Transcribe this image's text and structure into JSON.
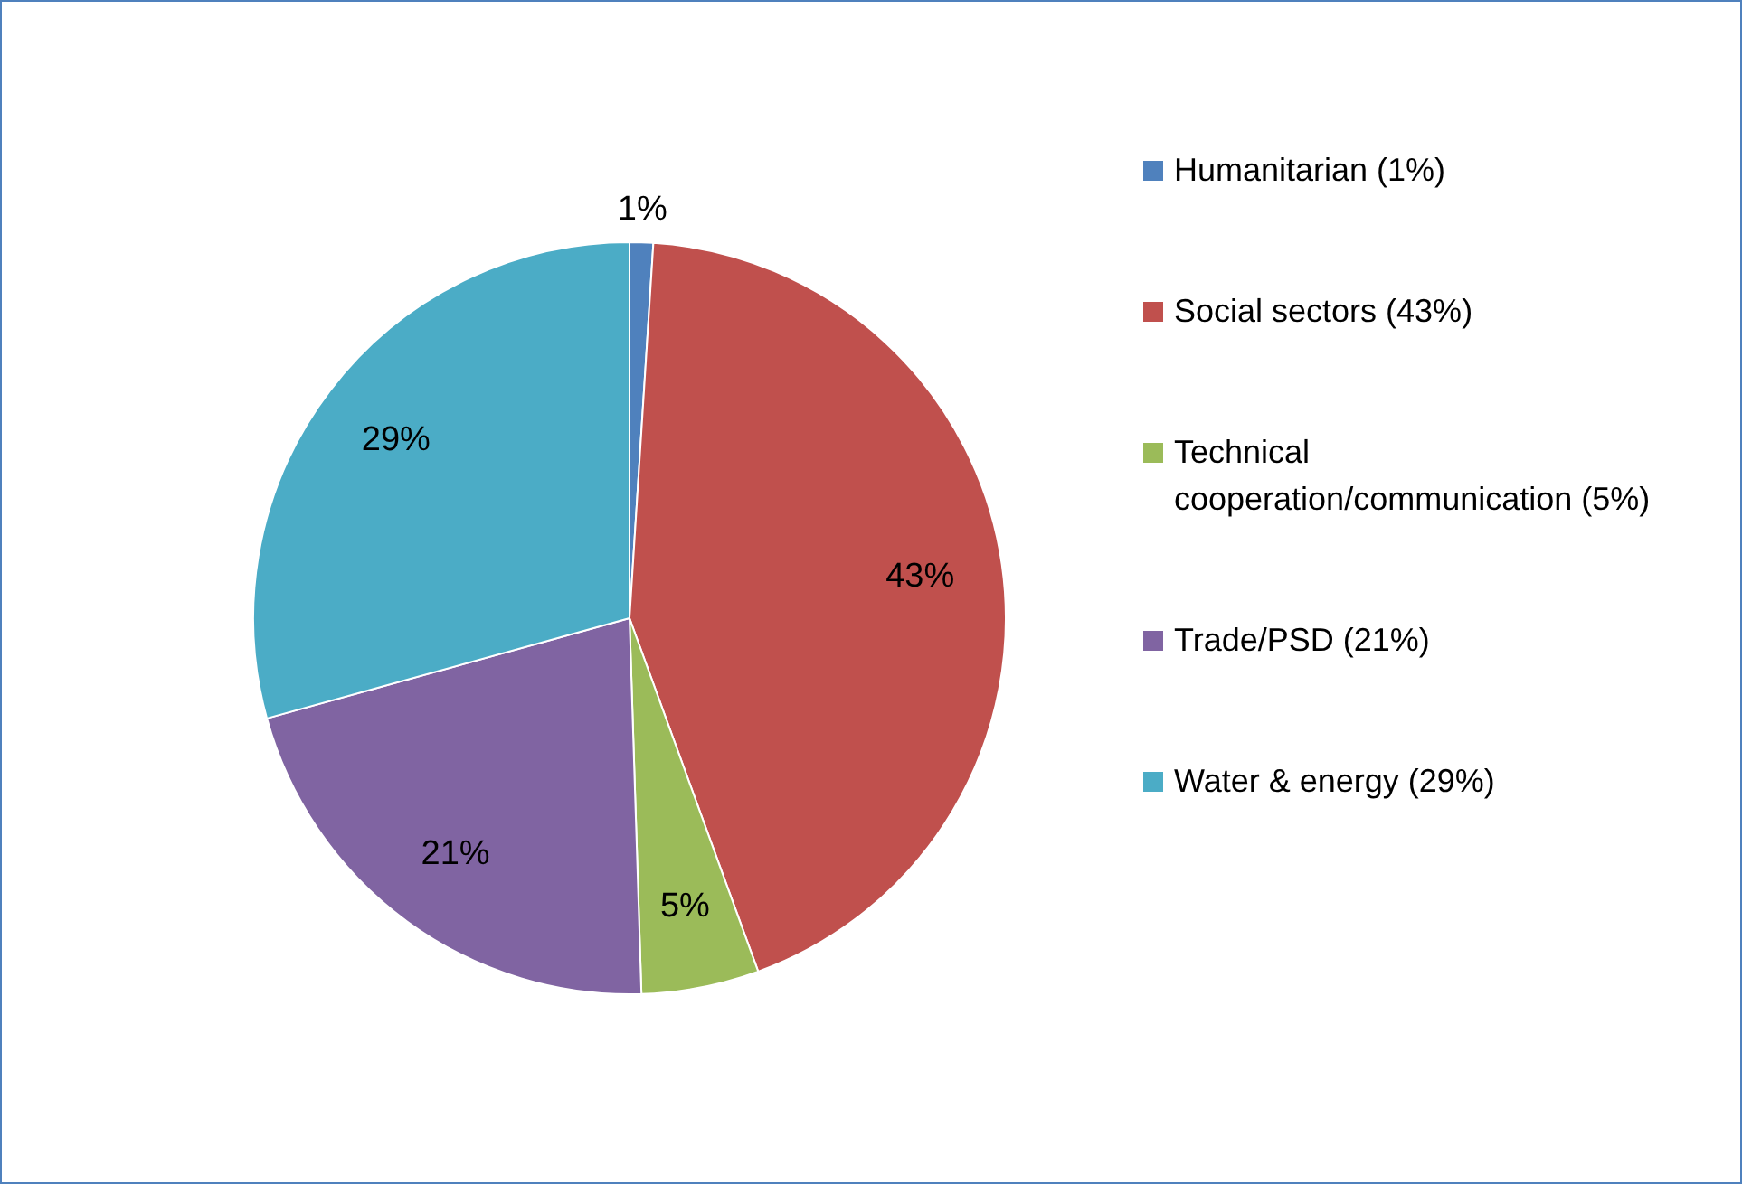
{
  "chart_data": {
    "type": "pie",
    "categories": [
      "Humanitarian (1%)",
      "Social sectors (43%)",
      "Technical cooperation/communication (5%)",
      "Trade/PSD (21%)",
      "Water & energy (29%)"
    ],
    "values": [
      1,
      43,
      5,
      21,
      29
    ],
    "colors": [
      "#4f81bd",
      "#c0504d",
      "#9bbb59",
      "#8064a2",
      "#4bacc6"
    ],
    "value_labels": [
      "1%",
      "43%",
      "5%",
      "21%",
      "29%"
    ],
    "legend": "right"
  }
}
